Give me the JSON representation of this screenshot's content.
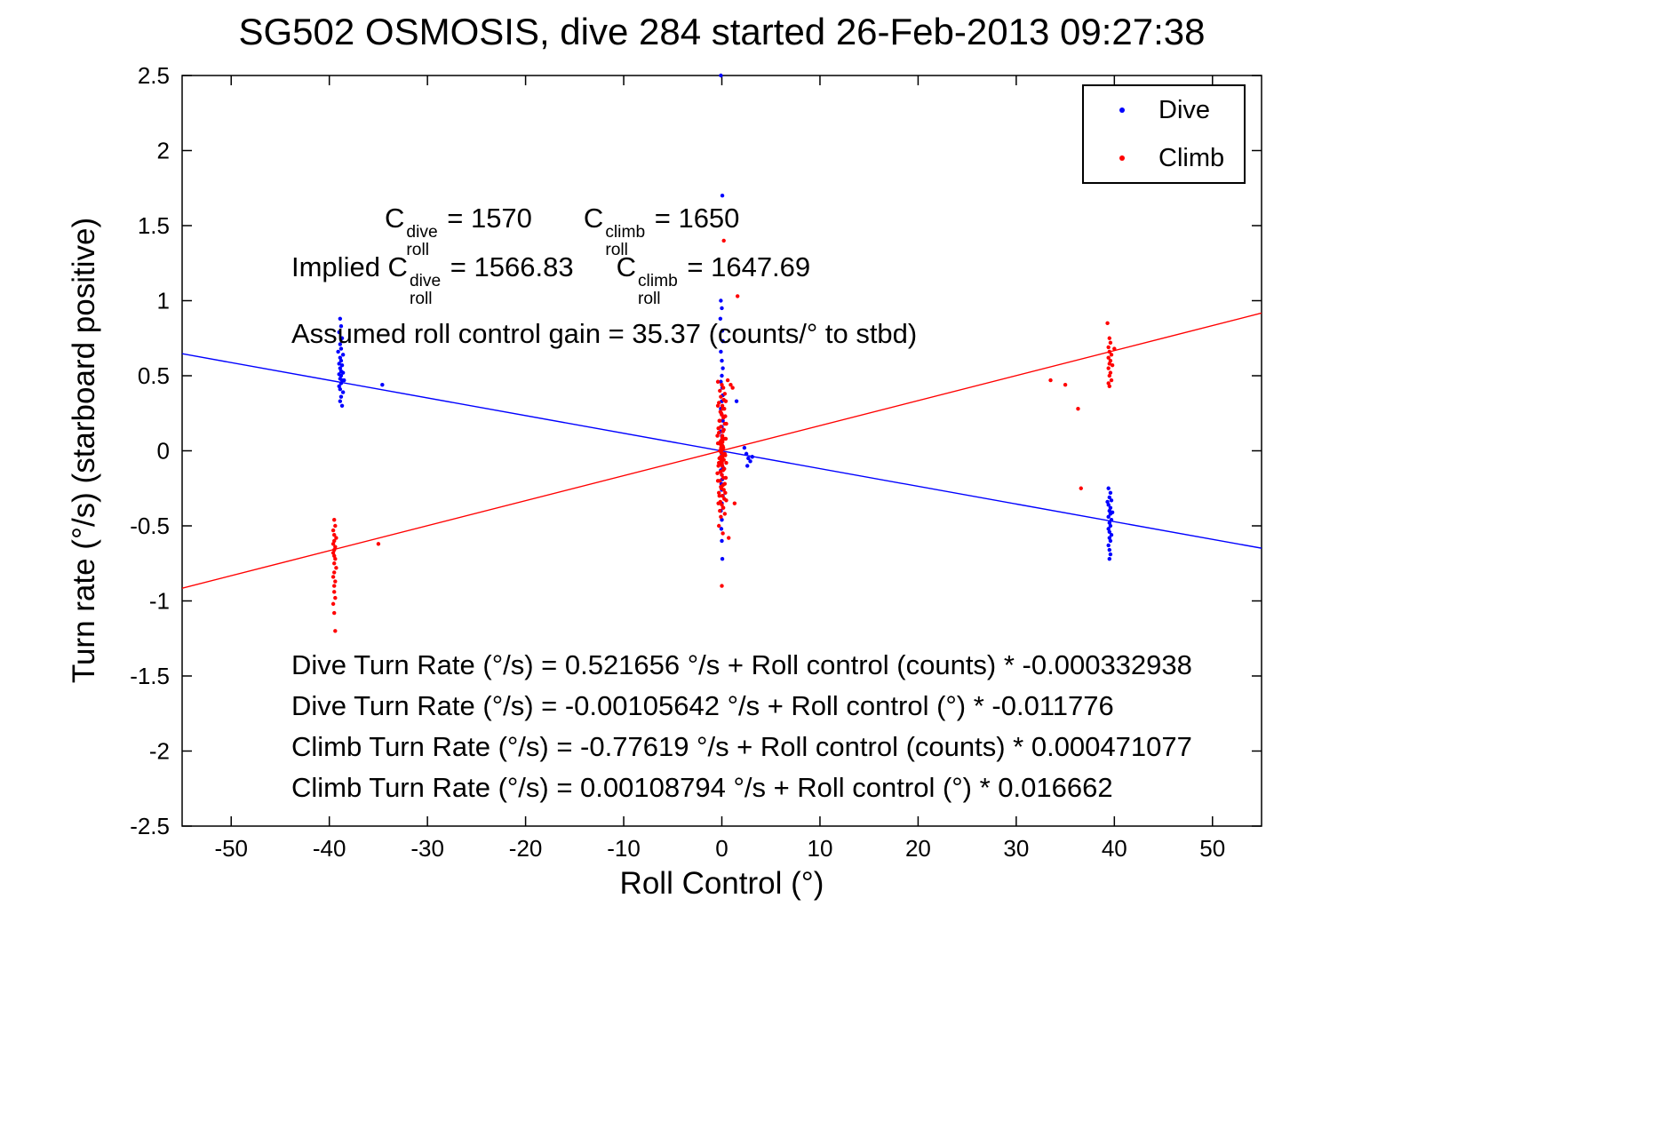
{
  "chart_data": {
    "type": "scatter",
    "title": "SG502 OSMOSIS, dive 284 started 26-Feb-2013 09:27:38",
    "xlabel": "Roll Control (°)",
    "ylabel": "Turn rate (°/s) (starboard positive)",
    "xlim": [
      -55,
      55
    ],
    "ylim": [
      -2.5,
      2.5
    ],
    "xtick_values": [
      -50,
      -40,
      -30,
      -20,
      -10,
      0,
      10,
      20,
      30,
      40,
      50
    ],
    "xtick_labels": [
      "-50",
      "-40",
      "-30",
      "-20",
      "-10",
      "0",
      "10",
      "20",
      "30",
      "40",
      "50"
    ],
    "ytick_values": [
      -2.5,
      -2,
      -1.5,
      -1,
      -0.5,
      0,
      0.5,
      1,
      1.5,
      2,
      2.5
    ],
    "ytick_labels": [
      "-2.5",
      "-2",
      "-1.5",
      "-1",
      "-0.5",
      "0",
      "0.5",
      "1",
      "1.5",
      "2",
      "2.5"
    ],
    "grid": false,
    "legend_position": "top-right",
    "fit_lines": [
      {
        "name": "dive",
        "slope": -0.011776,
        "intercept": -0.00105642,
        "color": "#0000ff"
      },
      {
        "name": "climb",
        "slope": 0.016662,
        "intercept": 0.00108794,
        "color": "#ff0000"
      }
    ],
    "series": [
      {
        "name": "Dive",
        "color": "#0000ff",
        "points": [
          [
            -38.9,
            0.88
          ],
          [
            -38.8,
            0.83
          ],
          [
            -39.0,
            0.79
          ],
          [
            -38.7,
            0.75
          ],
          [
            -38.9,
            0.71
          ],
          [
            -38.8,
            0.68
          ],
          [
            -39.1,
            0.66
          ],
          [
            -38.6,
            0.64
          ],
          [
            -38.9,
            0.62
          ],
          [
            -38.8,
            0.6
          ],
          [
            -39.0,
            0.58
          ],
          [
            -38.7,
            0.57
          ],
          [
            -38.9,
            0.55
          ],
          [
            -38.8,
            0.53
          ],
          [
            -38.6,
            0.52
          ],
          [
            -39.0,
            0.51
          ],
          [
            -38.8,
            0.5
          ],
          [
            -38.9,
            0.48
          ],
          [
            -38.7,
            0.47
          ],
          [
            -38.8,
            0.45
          ],
          [
            -39.0,
            0.43
          ],
          [
            -38.9,
            0.41
          ],
          [
            -38.6,
            0.39
          ],
          [
            -38.8,
            0.36
          ],
          [
            -38.9,
            0.33
          ],
          [
            -38.7,
            0.3
          ],
          [
            -38.5,
            0.47
          ],
          [
            -34.6,
            0.44
          ],
          [
            -0.1,
            2.5
          ],
          [
            0.05,
            1.7
          ],
          [
            -0.1,
            1.0
          ],
          [
            0.0,
            0.95
          ],
          [
            -0.15,
            0.88
          ],
          [
            0.05,
            0.8
          ],
          [
            0.1,
            0.73
          ],
          [
            -0.1,
            0.66
          ],
          [
            0.0,
            0.6
          ],
          [
            0.1,
            0.55
          ],
          [
            0.0,
            0.5
          ],
          [
            -0.1,
            0.46
          ],
          [
            0.05,
            0.42
          ],
          [
            0.1,
            0.37
          ],
          [
            0.0,
            0.33
          ],
          [
            -0.1,
            0.28
          ],
          [
            0.0,
            0.24
          ],
          [
            0.1,
            0.2
          ],
          [
            0.0,
            0.16
          ],
          [
            -0.1,
            0.13
          ],
          [
            0.0,
            0.1
          ],
          [
            0.05,
            0.08
          ],
          [
            -0.05,
            0.06
          ],
          [
            0.0,
            0.04
          ],
          [
            0.1,
            0.02
          ],
          [
            -0.1,
            0.0
          ],
          [
            0.0,
            -0.02
          ],
          [
            0.05,
            -0.05
          ],
          [
            -0.05,
            -0.07
          ],
          [
            0.0,
            -0.09
          ],
          [
            0.1,
            -0.11
          ],
          [
            -0.1,
            -0.13
          ],
          [
            0.0,
            -0.16
          ],
          [
            0.05,
            -0.19
          ],
          [
            -0.05,
            -0.22
          ],
          [
            0.0,
            -0.26
          ],
          [
            0.1,
            -0.3
          ],
          [
            0.0,
            -0.35
          ],
          [
            -0.1,
            -0.4
          ],
          [
            0.0,
            -0.46
          ],
          [
            -0.05,
            -0.52
          ],
          [
            0.0,
            -0.6
          ],
          [
            0.05,
            -0.72
          ],
          [
            1.5,
            0.33
          ],
          [
            2.3,
            0.02
          ],
          [
            2.5,
            -0.02
          ],
          [
            2.7,
            -0.05
          ],
          [
            2.9,
            -0.07
          ],
          [
            3.1,
            -0.04
          ],
          [
            2.6,
            -0.1
          ],
          [
            39.4,
            -0.25
          ],
          [
            39.6,
            -0.28
          ],
          [
            39.5,
            -0.31
          ],
          [
            39.7,
            -0.33
          ],
          [
            39.4,
            -0.36
          ],
          [
            39.6,
            -0.38
          ],
          [
            39.5,
            -0.4
          ],
          [
            39.6,
            -0.42
          ],
          [
            39.4,
            -0.44
          ],
          [
            39.7,
            -0.46
          ],
          [
            39.5,
            -0.48
          ],
          [
            39.6,
            -0.5
          ],
          [
            39.4,
            -0.52
          ],
          [
            39.5,
            -0.54
          ],
          [
            39.7,
            -0.56
          ],
          [
            39.5,
            -0.58
          ],
          [
            39.6,
            -0.6
          ],
          [
            39.4,
            -0.63
          ],
          [
            39.5,
            -0.66
          ],
          [
            39.6,
            -0.69
          ],
          [
            39.5,
            -0.72
          ],
          [
            39.3,
            -0.34
          ],
          [
            39.8,
            -0.41
          ]
        ]
      },
      {
        "name": "Climb",
        "color": "#ff0000",
        "points": [
          [
            -39.5,
            -0.46
          ],
          [
            -39.4,
            -0.5
          ],
          [
            -39.6,
            -0.53
          ],
          [
            -39.5,
            -0.56
          ],
          [
            -39.3,
            -0.58
          ],
          [
            -39.5,
            -0.6
          ],
          [
            -39.6,
            -0.62
          ],
          [
            -39.4,
            -0.64
          ],
          [
            -39.5,
            -0.66
          ],
          [
            -39.6,
            -0.68
          ],
          [
            -39.5,
            -0.7
          ],
          [
            -39.4,
            -0.72
          ],
          [
            -39.5,
            -0.75
          ],
          [
            -39.3,
            -0.78
          ],
          [
            -39.5,
            -0.81
          ],
          [
            -39.6,
            -0.84
          ],
          [
            -39.4,
            -0.87
          ],
          [
            -39.5,
            -0.9
          ],
          [
            -39.5,
            -0.94
          ],
          [
            -39.4,
            -0.98
          ],
          [
            -39.6,
            -1.02
          ],
          [
            -39.5,
            -1.08
          ],
          [
            -39.4,
            -1.2
          ],
          [
            -35.0,
            -0.62
          ],
          [
            0.0,
            0.44
          ],
          [
            0.15,
            0.42
          ],
          [
            -0.2,
            0.4
          ],
          [
            0.3,
            0.38
          ],
          [
            -0.1,
            0.36
          ],
          [
            0.2,
            0.34
          ],
          [
            -0.3,
            0.32
          ],
          [
            0.05,
            0.3
          ],
          [
            0.25,
            0.28
          ],
          [
            -0.15,
            0.26
          ],
          [
            0.0,
            0.24
          ],
          [
            0.15,
            0.22
          ],
          [
            -0.2,
            0.2
          ],
          [
            0.3,
            0.18
          ],
          [
            -0.1,
            0.16
          ],
          [
            0.2,
            0.14
          ],
          [
            -0.3,
            0.12
          ],
          [
            0.05,
            0.1
          ],
          [
            0.25,
            0.08
          ],
          [
            -0.15,
            0.06
          ],
          [
            0.0,
            0.04
          ],
          [
            0.15,
            0.02
          ],
          [
            -0.2,
            0.0
          ],
          [
            0.3,
            -0.02
          ],
          [
            -0.1,
            -0.04
          ],
          [
            0.2,
            -0.06
          ],
          [
            -0.3,
            -0.08
          ],
          [
            0.05,
            -0.1
          ],
          [
            0.25,
            -0.12
          ],
          [
            -0.15,
            -0.14
          ],
          [
            0.0,
            -0.16
          ],
          [
            0.15,
            -0.18
          ],
          [
            -0.2,
            -0.2
          ],
          [
            0.3,
            -0.22
          ],
          [
            -0.1,
            -0.24
          ],
          [
            0.2,
            -0.26
          ],
          [
            -0.3,
            -0.28
          ],
          [
            0.05,
            -0.3
          ],
          [
            0.25,
            -0.32
          ],
          [
            -0.15,
            -0.34
          ],
          [
            0.0,
            -0.36
          ],
          [
            0.15,
            -0.38
          ],
          [
            -0.2,
            -0.4
          ],
          [
            0.3,
            -0.42
          ],
          [
            -0.1,
            -0.44
          ],
          [
            0.4,
            0.33
          ],
          [
            -0.4,
            0.3
          ],
          [
            0.1,
            0.28
          ],
          [
            -0.05,
            0.25
          ],
          [
            0.35,
            0.23
          ],
          [
            -0.25,
            0.2
          ],
          [
            0.45,
            0.18
          ],
          [
            -0.35,
            0.15
          ],
          [
            0.12,
            0.13
          ],
          [
            -0.45,
            0.1
          ],
          [
            0.4,
            0.08
          ],
          [
            -0.4,
            0.05
          ],
          [
            0.1,
            0.03
          ],
          [
            -0.05,
            0.0
          ],
          [
            0.35,
            -0.03
          ],
          [
            -0.25,
            -0.05
          ],
          [
            0.45,
            -0.08
          ],
          [
            -0.35,
            -0.1
          ],
          [
            0.12,
            -0.13
          ],
          [
            -0.45,
            -0.15
          ],
          [
            0.4,
            -0.18
          ],
          [
            -0.4,
            -0.2
          ],
          [
            0.1,
            -0.23
          ],
          [
            -0.05,
            -0.25
          ],
          [
            0.35,
            -0.28
          ],
          [
            -0.25,
            -0.3
          ],
          [
            0.45,
            -0.33
          ],
          [
            -0.35,
            -0.35
          ],
          [
            0.12,
            -0.38
          ],
          [
            0.02,
            0.01
          ],
          [
            -0.06,
            -0.01
          ],
          [
            0.08,
            0.03
          ],
          [
            -0.03,
            0.05
          ],
          [
            0.06,
            -0.04
          ],
          [
            -0.08,
            0.02
          ],
          [
            0.03,
            -0.06
          ],
          [
            -0.02,
            0.07
          ],
          [
            0.07,
            0.06
          ],
          [
            -0.07,
            -0.07
          ],
          [
            0.04,
            0.09
          ],
          [
            -0.04,
            -0.09
          ],
          [
            0.09,
            -0.02
          ],
          [
            -0.09,
            0.04
          ],
          [
            0.01,
            -0.08
          ],
          [
            0.2,
            1.4
          ],
          [
            1.6,
            1.03
          ],
          [
            0.6,
            0.47
          ],
          [
            -0.4,
            0.46
          ],
          [
            0.9,
            0.44
          ],
          [
            0.1,
            -0.55
          ],
          [
            0.7,
            -0.58
          ],
          [
            -0.3,
            -0.5
          ],
          [
            0.0,
            -0.9
          ],
          [
            1.1,
            0.42
          ],
          [
            1.3,
            -0.35
          ],
          [
            33.5,
            0.47
          ],
          [
            35.0,
            0.44
          ],
          [
            36.3,
            0.28
          ],
          [
            39.3,
            0.85
          ],
          [
            39.5,
            0.75
          ],
          [
            39.6,
            0.72
          ],
          [
            39.4,
            0.69
          ],
          [
            39.5,
            0.66
          ],
          [
            39.7,
            0.64
          ],
          [
            39.4,
            0.62
          ],
          [
            39.6,
            0.6
          ],
          [
            39.5,
            0.58
          ],
          [
            39.4,
            0.55
          ],
          [
            39.6,
            0.52
          ],
          [
            39.5,
            0.5
          ],
          [
            39.7,
            0.47
          ],
          [
            39.4,
            0.45
          ],
          [
            39.5,
            0.43
          ],
          [
            36.6,
            -0.25
          ],
          [
            40.0,
            0.68
          ],
          [
            39.8,
            0.57
          ]
        ]
      }
    ],
    "equations": [
      "Dive Turn Rate (°/s) = 0.521656 °/s + Roll control (counts) * -0.000332938",
      "Dive Turn Rate (°/s) = -0.00105642 °/s + Roll control (°) * -0.011776",
      "Climb Turn Rate (°/s) = -0.77619 °/s + Roll control (counts) * 0.000471077",
      "Climb Turn Rate (°/s) = 0.00108794 °/s + Roll control (°) * 0.016662"
    ]
  },
  "annotations": {
    "line1": [
      {
        "t": "C"
      },
      {
        "sup": "dive",
        "sub": "roll"
      },
      {
        "t": " = 1570"
      },
      {
        "gap": 58
      },
      {
        "t": "C"
      },
      {
        "sup": "climb",
        "sub": "roll"
      },
      {
        "t": " = 1650"
      }
    ],
    "line2": [
      {
        "t": "Implied C"
      },
      {
        "sup": "dive",
        "sub": "roll"
      },
      {
        "t": " = 1566.83"
      },
      {
        "gap": 48
      },
      {
        "t": "C"
      },
      {
        "sup": "climb",
        "sub": "roll"
      },
      {
        "t": " = 1647.69"
      }
    ],
    "line3": [
      {
        "t": "Assumed roll control gain = 35.37 (counts/° to stbd)"
      }
    ]
  }
}
